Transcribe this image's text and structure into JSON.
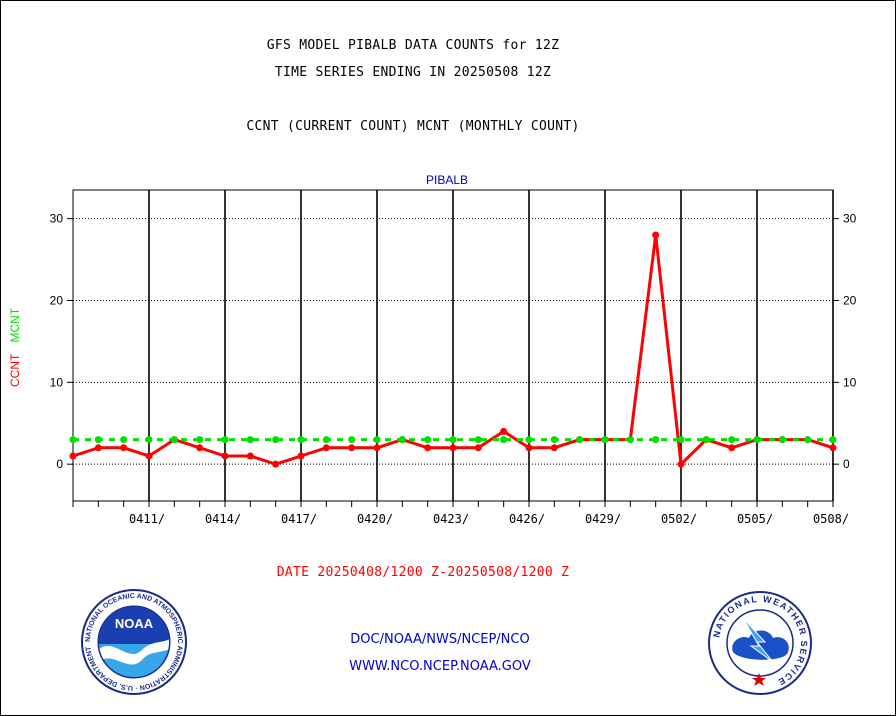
{
  "header": {
    "title1": "GFS MODEL PIBALB DATA COUNTS for 12Z",
    "title2": "TIME SERIES ENDING IN 20250508 12Z",
    "subtitle": "CCNT (CURRENT COUNT) MCNT (MONTHLY COUNT)"
  },
  "footer": {
    "date_range": "DATE 20250408/1200 Z-20250508/1200 Z",
    "org_path": "DOC/NOAA/NWS/NCEP/NCO",
    "website": "WWW.NCO.NCEP.NOAA.GOV"
  },
  "logos": {
    "noaa_label": "NOAA",
    "noaa_ring_text": "NATIONAL OCEANIC AND ATMOSPHERIC ADMINISTRATION · U.S. DEPARTMENT OF COMMERCE ·",
    "nws_ring_text": "NATIONAL WEATHER SERVICE"
  },
  "colors": {
    "ccnt": "#ff0000",
    "mcnt": "#00e000",
    "panel_title": "#0000cc",
    "grid": "#000000"
  },
  "chart_data": {
    "type": "line",
    "title": "PIBALB",
    "ylabel_parts": [
      {
        "text": "CCNT",
        "series": "CCNT"
      },
      {
        "text": "MCNT",
        "series": "MCNT"
      }
    ],
    "x_tick_labels": [
      "0411/",
      "0414/",
      "0417/",
      "0420/",
      "0423/",
      "0426/",
      "0429/",
      "0502/",
      "0505/",
      "0508/"
    ],
    "x_tick_dates": [
      "2025-04-11",
      "2025-04-14",
      "2025-04-17",
      "2025-04-20",
      "2025-04-23",
      "2025-04-26",
      "2025-04-29",
      "2025-05-02",
      "2025-05-05",
      "2025-05-08"
    ],
    "x": [
      "2025-04-08",
      "2025-04-09",
      "2025-04-10",
      "2025-04-11",
      "2025-04-12",
      "2025-04-13",
      "2025-04-14",
      "2025-04-15",
      "2025-04-16",
      "2025-04-17",
      "2025-04-18",
      "2025-04-19",
      "2025-04-20",
      "2025-04-21",
      "2025-04-22",
      "2025-04-23",
      "2025-04-24",
      "2025-04-25",
      "2025-04-26",
      "2025-04-27",
      "2025-04-28",
      "2025-04-29",
      "2025-04-30",
      "2025-05-01",
      "2025-05-02",
      "2025-05-03",
      "2025-05-04",
      "2025-05-05",
      "2025-05-06",
      "2025-05-07",
      "2025-05-08"
    ],
    "xlim": [
      "2025-04-08",
      "2025-05-08"
    ],
    "ylim": [
      -4.5,
      33.5
    ],
    "y_ticks": [
      0,
      10,
      20,
      30
    ],
    "grid": true,
    "series": [
      {
        "name": "CCNT",
        "style": "solid",
        "values": [
          1,
          2,
          2,
          1,
          3,
          2,
          1,
          1,
          0,
          1,
          2,
          2,
          2,
          3,
          2,
          2,
          2,
          4,
          2,
          2,
          3,
          3,
          3,
          28,
          0,
          3,
          2,
          3,
          3,
          3,
          2
        ]
      },
      {
        "name": "MCNT",
        "style": "dashed",
        "values": [
          3,
          3,
          3,
          3,
          3,
          3,
          3,
          3,
          3,
          3,
          3,
          3,
          3,
          3,
          3,
          3,
          3,
          3,
          3,
          3,
          3,
          3,
          3,
          3,
          3,
          3,
          3,
          3,
          3,
          3,
          3
        ]
      }
    ]
  }
}
